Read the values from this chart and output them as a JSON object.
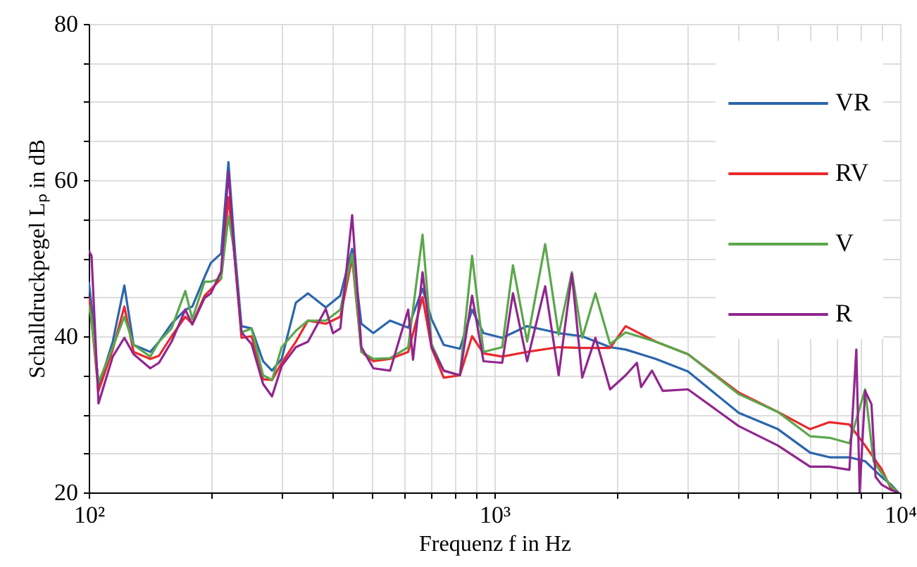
{
  "chart_data": {
    "type": "line",
    "xlabel": "Frequenz f in Hz",
    "ylabel": "Schalldruckpegel Lₚ in dB",
    "log": "x",
    "grid": true,
    "legend": "top right",
    "line_style": "solid",
    "xlim": [
      100,
      10000
    ],
    "ylim": [
      20,
      80
    ],
    "xticks": [
      {
        "value": 100,
        "label": "10²"
      },
      {
        "value": 200,
        "label": null
      },
      {
        "value": 300,
        "label": null
      },
      {
        "value": 400,
        "label": null
      },
      {
        "value": 500,
        "label": null
      },
      {
        "value": 600,
        "label": null
      },
      {
        "value": 700,
        "label": null
      },
      {
        "value": 800,
        "label": null
      },
      {
        "value": 900,
        "label": null
      },
      {
        "value": 1000,
        "label": "10³"
      },
      {
        "value": 2000,
        "label": null
      },
      {
        "value": 3000,
        "label": null
      },
      {
        "value": 4000,
        "label": null
      },
      {
        "value": 5000,
        "label": null
      },
      {
        "value": 6000,
        "label": null
      },
      {
        "value": 7000,
        "label": null
      },
      {
        "value": 8000,
        "label": null
      },
      {
        "value": 9000,
        "label": null
      },
      {
        "value": 10000,
        "label": "10⁴"
      }
    ],
    "yticks": [
      20,
      {
        "value": 25,
        "label": null
      },
      {
        "value": 30,
        "label": null
      },
      {
        "value": 35,
        "label": null
      },
      40,
      {
        "value": 45,
        "label": null
      },
      {
        "value": 50,
        "label": null
      },
      {
        "value": 55,
        "label": null
      },
      60,
      {
        "value": 65,
        "label": null
      },
      {
        "value": 70,
        "label": null
      },
      {
        "value": 75,
        "label": null
      },
      80
    ],
    "series": [
      {
        "name": "VR",
        "color": "#2b66ad",
        "x": [
          100,
          101.6,
          105.7,
          114.6,
          122.4,
          129,
          141.8,
          149,
          160,
          173,
          180,
          193,
          200,
          212,
          221,
          229,
          238,
          252,
          269,
          283,
          299,
          324,
          347,
          384,
          417,
          446,
          470,
          503,
          553,
          613,
          665,
          700,
          750,
          822,
          881,
          940,
          1045,
          1204,
          1440,
          1646,
          1928,
          2106,
          2500,
          3000,
          4000,
          5000,
          6000,
          6700,
          7500,
          8200,
          9000,
          9500,
          9900
        ],
        "values": [
          47,
          44,
          33.5,
          39.3,
          46.5,
          38.9,
          38,
          39.3,
          41.6,
          43.4,
          43.8,
          47.6,
          49.4,
          50.6,
          62.3,
          51.2,
          41.3,
          41,
          36.8,
          35.6,
          37.1,
          44.3,
          45.5,
          43.7,
          45.2,
          51.2,
          41.6,
          40.4,
          42,
          41.1,
          46.1,
          42.2,
          38.9,
          38.4,
          43.4,
          40.4,
          39.8,
          41.3,
          40.4,
          40,
          38.6,
          38.3,
          37.1,
          35.5,
          30.2,
          28.1,
          25.1,
          24.5,
          24.5,
          24,
          22,
          21,
          20
        ]
      },
      {
        "name": "RV",
        "color": "#e8292b",
        "x": [
          100,
          101.6,
          105.7,
          114.6,
          122.4,
          129,
          141.8,
          149,
          160,
          173,
          180,
          193,
          200,
          212,
          221,
          229,
          238,
          252,
          269,
          283,
          299,
          324,
          347,
          384,
          417,
          446,
          470,
          503,
          553,
          613,
          665,
          700,
          750,
          822,
          881,
          940,
          1045,
          1204,
          1440,
          1646,
          1928,
          2106,
          2500,
          3000,
          4000,
          5000,
          6000,
          6700,
          7500,
          8200,
          9000,
          9500,
          9900
        ],
        "values": [
          45,
          42,
          33,
          38.3,
          43.8,
          38,
          37.1,
          37.5,
          40,
          42.5,
          41.6,
          45.2,
          46,
          47.4,
          57.8,
          50,
          39.8,
          40,
          34.5,
          34.4,
          36.6,
          39.3,
          42,
          41.6,
          42.5,
          50,
          38,
          36.8,
          37.1,
          38,
          45,
          38.5,
          34.7,
          35,
          40,
          37.8,
          37.4,
          38,
          38.6,
          38.5,
          38.5,
          41.3,
          39.3,
          37.7,
          32.8,
          30.3,
          28.1,
          29,
          28.7,
          26,
          23,
          20.5,
          20
        ]
      },
      {
        "name": "V",
        "color": "#5aa74b",
        "x": [
          100,
          101.6,
          105.7,
          114.6,
          122.4,
          129,
          141.8,
          149,
          160,
          173,
          180,
          193,
          200,
          212,
          221,
          229,
          238,
          252,
          269,
          283,
          299,
          324,
          347,
          384,
          417,
          446,
          470,
          503,
          553,
          613,
          665,
          700,
          750,
          822,
          881,
          940,
          1045,
          1111,
          1204,
          1334,
          1440,
          1552,
          1646,
          1774,
          1928,
          2106,
          2500,
          3000,
          4000,
          5000,
          6000,
          6700,
          7500,
          8200,
          8600,
          9000,
          9500,
          9900
        ],
        "values": [
          44,
          42,
          34.1,
          38.6,
          42.5,
          38.9,
          37.4,
          39.3,
          41,
          45.8,
          42.2,
          47,
          47,
          47.4,
          55.4,
          50.5,
          40.5,
          41,
          35,
          34.4,
          38.6,
          40.7,
          42,
          42,
          43.4,
          50.5,
          38,
          37.1,
          37.2,
          38.6,
          53,
          39,
          35.6,
          35,
          50.3,
          38,
          38.6,
          49.1,
          39.3,
          51.8,
          40.2,
          48.2,
          39.8,
          45.5,
          39,
          40.5,
          39.3,
          37.7,
          32.6,
          30.3,
          27.2,
          27,
          26.3,
          33.2,
          24,
          22.5,
          20.8,
          20
        ]
      },
      {
        "name": "R",
        "color": "#91268e",
        "x": [
          100,
          101.6,
          105.7,
          114.6,
          122.4,
          129,
          141.8,
          149,
          160,
          173,
          180,
          193,
          200,
          212,
          221,
          229,
          238,
          252,
          269,
          283,
          299,
          324,
          347,
          384,
          400,
          417,
          446,
          470,
          503,
          553,
          613,
          630,
          665,
          700,
          750,
          822,
          881,
          940,
          1045,
          1111,
          1204,
          1334,
          1440,
          1552,
          1646,
          1774,
          1928,
          2106,
          2245,
          2300,
          2445,
          2600,
          3000,
          4000,
          5000,
          6000,
          6700,
          7500,
          7800,
          7950,
          8200,
          8500,
          8700,
          9000,
          9500,
          9900
        ],
        "values": [
          51,
          50.3,
          31.4,
          37.4,
          39.8,
          37.7,
          35.9,
          36.6,
          39.3,
          43.4,
          41.5,
          44.9,
          45.5,
          48.3,
          61.1,
          50,
          40.5,
          39,
          33.9,
          32.3,
          36.2,
          38.6,
          39.3,
          43.5,
          40.4,
          41,
          55.5,
          38.6,
          35.9,
          35.6,
          43.4,
          37,
          48.2,
          38.6,
          35.6,
          35,
          45.2,
          36.8,
          36.6,
          45.5,
          36.8,
          46.4,
          35,
          48,
          34.7,
          39.8,
          33.2,
          35,
          36.6,
          33.5,
          35.6,
          33,
          33.2,
          28.5,
          26,
          23.3,
          23.3,
          22.9,
          38.3,
          20,
          33,
          31.3,
          22,
          21,
          20.3,
          20
        ]
      }
    ]
  }
}
